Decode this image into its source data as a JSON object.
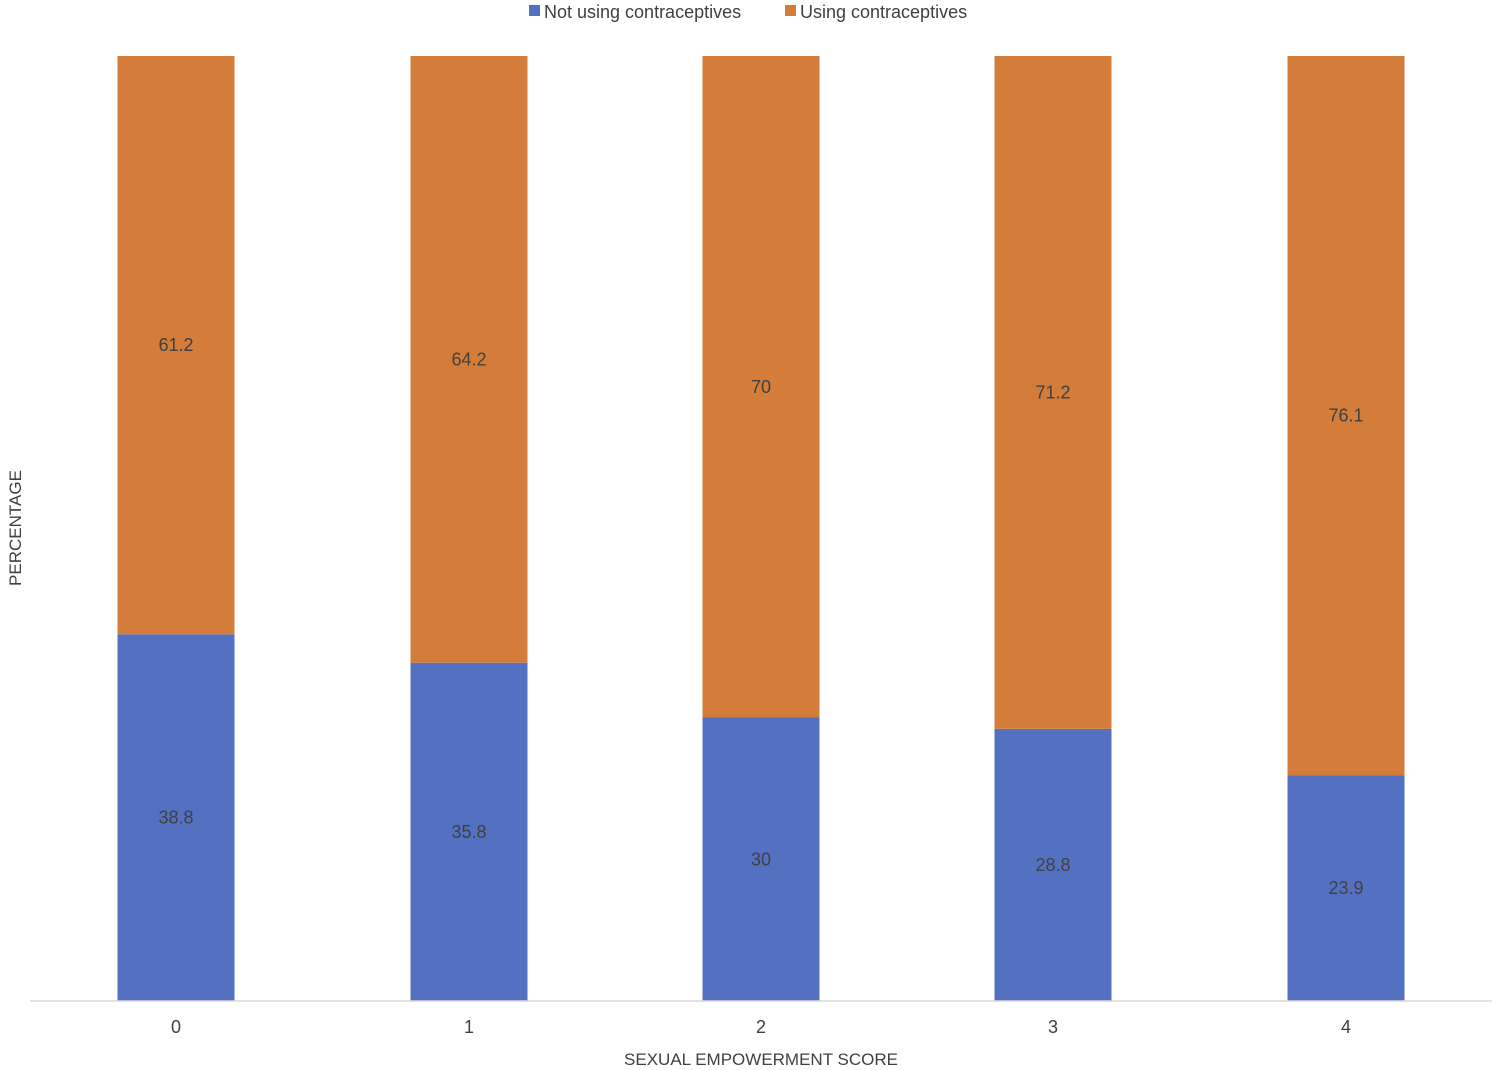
{
  "chart_data": {
    "type": "bar",
    "stacked": true,
    "categories": [
      "0",
      "1",
      "2",
      "3",
      "4"
    ],
    "series": [
      {
        "name": "Not using contraceptives",
        "color": "#5470c1",
        "values": [
          38.8,
          35.8,
          30,
          28.8,
          23.9
        ],
        "labels": [
          "38.8",
          "35.8",
          "30",
          "28.8",
          "23.9"
        ]
      },
      {
        "name": "Using contraceptives",
        "color": "#d47c39",
        "values": [
          61.2,
          64.2,
          70,
          71.2,
          76.1
        ],
        "labels": [
          "61.2",
          "64.2",
          "70",
          "71.2",
          "76.1"
        ]
      }
    ],
    "xlabel": "SEXUAL EMPOWERMENT SCORE",
    "ylabel": "PERCENTAGE",
    "ylim": [
      0,
      100
    ],
    "legend_position": "top-center",
    "grid": false,
    "axis_line_color": "#d9d9d9"
  }
}
